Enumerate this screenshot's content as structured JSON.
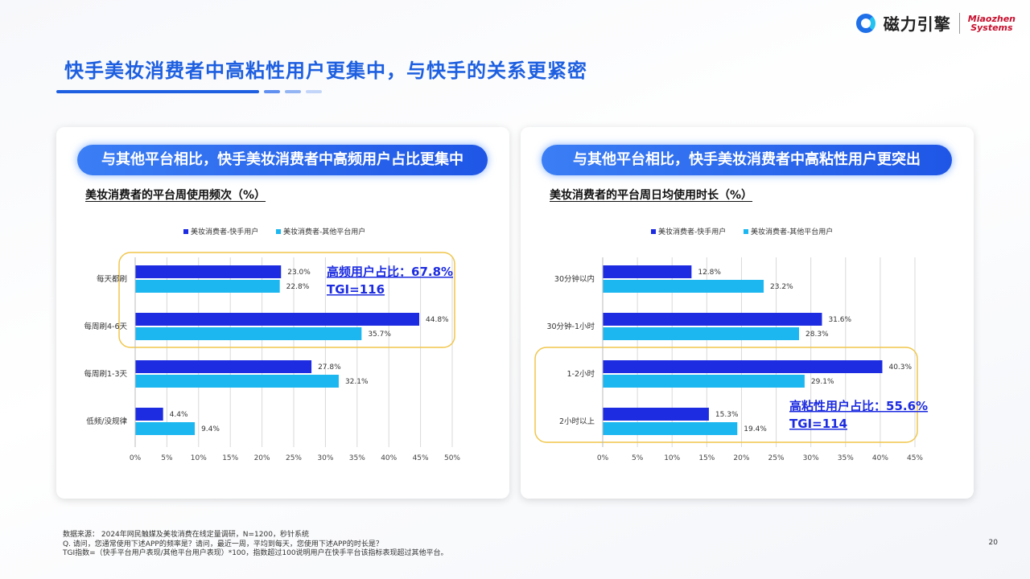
{
  "brand": {
    "name_cn": "磁力引擎",
    "name_en_line1": "Miaozhen",
    "name_en_line2": "Systems"
  },
  "page_title": "快手美妆消费者中高粘性用户更集中，与快手的关系更紧密",
  "colors": {
    "primary": "#1d2ce0",
    "secondary": "#1cb7f0",
    "highlight": "#f0c64a",
    "callout": "#1d2ce0",
    "accent": "#1d5fe0"
  },
  "left_panel": {
    "pill_title": "与其他平台相比，快手美妆消费者中高频用户占比更集中"
  },
  "right_panel": {
    "pill_title": "与其他平台相比，快手美妆消费者中高粘性用户更突出"
  },
  "chart_data": [
    {
      "type": "bar",
      "orientation": "horizontal",
      "title": "美妆消费者的平台周使用频次（%）",
      "categories": [
        "每天都刷",
        "每周刷4-6天",
        "每周刷1-3天",
        "低频/没规律"
      ],
      "series": [
        {
          "name": "美妆消费者-快手用户",
          "values": [
            23.0,
            44.8,
            27.8,
            4.4
          ]
        },
        {
          "name": "美妆消费者-其他平台用户",
          "values": [
            22.8,
            35.7,
            32.1,
            9.4
          ]
        }
      ],
      "value_labels": [
        [
          "23.0%",
          "44.8%",
          "27.8%",
          "4.4%"
        ],
        [
          "22.8%",
          "35.7%",
          "32.1%",
          "9.4%"
        ]
      ],
      "xlim": [
        0,
        50
      ],
      "xticks": [
        "0%",
        "5%",
        "10%",
        "15%",
        "20%",
        "25%",
        "30%",
        "35%",
        "40%",
        "45%",
        "50%"
      ],
      "grid": "vertical",
      "legend_position": "top",
      "highlight_categories": [
        0,
        1
      ],
      "callout": [
        "高频用户占比：67.8%",
        "TGI=116"
      ]
    },
    {
      "type": "bar",
      "orientation": "horizontal",
      "title": "美妆消费者的平台周日均使用时长（%）",
      "categories": [
        "30分钟以内",
        "30分钟-1小时",
        "1-2小时",
        "2小时以上"
      ],
      "series": [
        {
          "name": "美妆消费者-快手用户",
          "values": [
            12.8,
            31.6,
            40.3,
            15.3
          ]
        },
        {
          "name": "美妆消费者-其他平台用户",
          "values": [
            23.2,
            28.3,
            29.1,
            19.4
          ]
        }
      ],
      "value_labels": [
        [
          "12.8%",
          "31.6%",
          "40.3%",
          "15.3%"
        ],
        [
          "23.2%",
          "28.3%",
          "29.1%",
          "19.4%"
        ]
      ],
      "xlim": [
        0,
        45
      ],
      "xticks": [
        "0%",
        "5%",
        "10%",
        "15%",
        "20%",
        "25%",
        "30%",
        "35%",
        "40%",
        "45%"
      ],
      "grid": "vertical",
      "legend_position": "top",
      "highlight_categories": [
        2,
        3
      ],
      "callout": [
        "高粘性用户占比：55.6%",
        "TGI=114"
      ]
    }
  ],
  "footnote": {
    "source": "数据来源：  2024年网民触媒及美妆消费在线定量调研，N=1200，秒针系统",
    "question": "Q. 请问，您通常使用下述APP的频率是？请问，最近一周，平均到每天，您使用下述APP的时长是？",
    "tgi": "TGI指数=（快手平台用户表现/其他平台用户表现）*100，指数超过100说明用户在快手平台该指标表现超过其他平台。"
  },
  "page_number": "20"
}
